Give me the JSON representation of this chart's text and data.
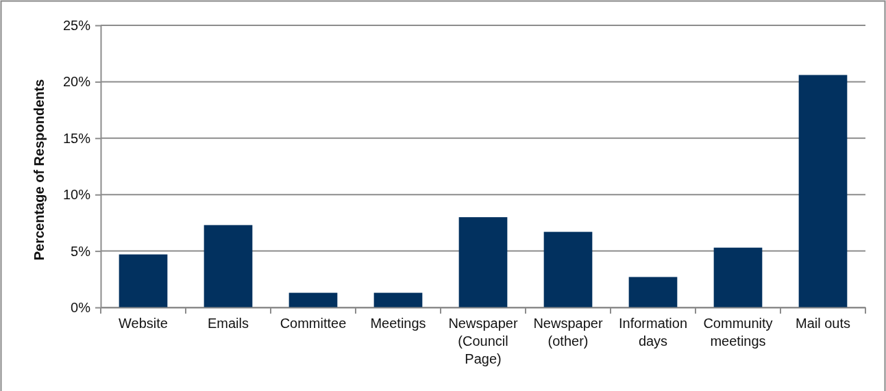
{
  "chart_data": {
    "type": "bar",
    "ylabel": "Percentage of Respondents",
    "categories": [
      "Website",
      "Emails",
      "Committee",
      "Meetings",
      "Newspaper (Council Page)",
      "Newspaper (other)",
      "Information days",
      "Community meetings",
      "Mail outs"
    ],
    "values": [
      4.7,
      7.3,
      1.3,
      1.3,
      8.0,
      6.7,
      2.7,
      5.3,
      20.6
    ],
    "color": "#02315f",
    "ylim": [
      0,
      25
    ],
    "yticks": [
      {
        "value": 0,
        "label": "0%"
      },
      {
        "value": 5,
        "label": "5%"
      },
      {
        "value": 10,
        "label": "10%"
      },
      {
        "value": 15,
        "label": "15%"
      },
      {
        "value": 20,
        "label": "20%"
      },
      {
        "value": 25,
        "label": "25%"
      }
    ],
    "grid": "y"
  }
}
